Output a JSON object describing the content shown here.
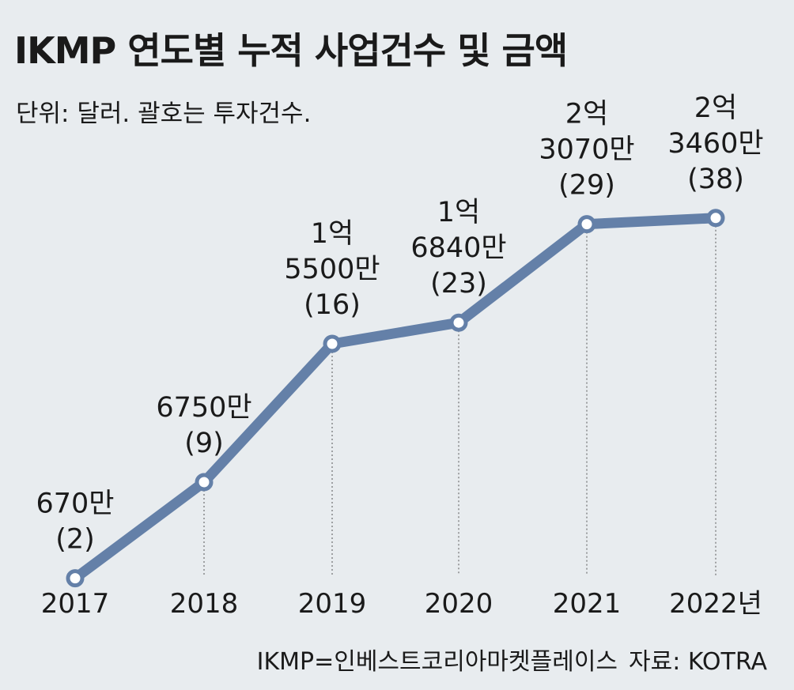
{
  "title": "IKMP 연도별 누적 사업건수 및 금액",
  "unit_note": "단위: 달러. 괄호는 투자건수.",
  "footer": {
    "note": "IKMP=인베스트코리아마켓플레이스",
    "source": "자료: KOTRA"
  },
  "colors": {
    "line": "#6480a8",
    "background": "#e8ecef",
    "marker_fill": "#ffffff"
  },
  "chart_data": {
    "type": "line",
    "title": "IKMP 연도별 누적 사업건수 및 금액",
    "xlabel": "",
    "ylabel": "",
    "categories": [
      "2017",
      "2018",
      "2019",
      "2020",
      "2021",
      "2022년"
    ],
    "series": [
      {
        "values": [
          6700000,
          67500000,
          155000000,
          168400000,
          230700000,
          234600000
        ],
        "counts": [
          2,
          9,
          16,
          23,
          29,
          38
        ],
        "labels": [
          [
            "670만",
            "(2)"
          ],
          [
            "6750만",
            "(9)"
          ],
          [
            "1억",
            "5500만",
            "(16)"
          ],
          [
            "1억",
            "6840만",
            "(23)"
          ],
          [
            "2억",
            "3070만",
            "(29)"
          ],
          [
            "2억",
            "3460만",
            "(38)"
          ]
        ]
      }
    ],
    "ylim": [
      0,
      260000000
    ],
    "grid": false,
    "legend": "none"
  }
}
